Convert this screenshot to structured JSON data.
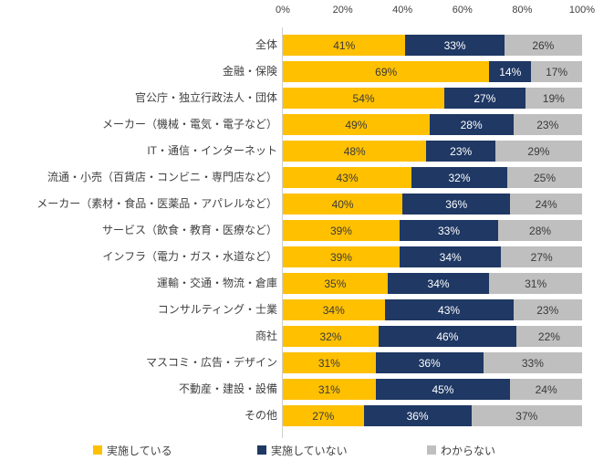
{
  "chart_data": {
    "type": "bar",
    "orientation": "horizontal-stacked",
    "title": "",
    "xlabel": "",
    "ylabel": "",
    "value_suffix": "%",
    "x_axis": {
      "min": 0,
      "max": 100,
      "ticks": [
        "0%",
        "20%",
        "40%",
        "60%",
        "80%",
        "100%"
      ],
      "tick_values": [
        0,
        20,
        40,
        60,
        80,
        100
      ]
    },
    "grid": false,
    "legend_position": "bottom",
    "categories": [
      "全体",
      "金融・保険",
      "官公庁・独立行政法人・団体",
      "メーカー（機械・電気・電子など）",
      "IT・通信・インターネット",
      "流通・小売（百貨店・コンビニ・専門店など）",
      "メーカー（素材・食品・医薬品・アパレルなど）",
      "サービス（飲食・教育・医療など）",
      "インフラ（電力・ガス・水道など）",
      "運輸・交通・物流・倉庫",
      "コンサルティング・士業",
      "商社",
      "マスコミ・広告・デザイン",
      "不動産・建設・設備",
      "その他"
    ],
    "series": [
      {
        "name": "実施している",
        "color": "#FFC000",
        "text_color": "#3a3a3a",
        "values": [
          41,
          69,
          54,
          49,
          48,
          43,
          40,
          39,
          39,
          35,
          34,
          32,
          31,
          31,
          27
        ]
      },
      {
        "name": "実施していない",
        "color": "#1F3864",
        "text_color": "#ffffff",
        "values": [
          33,
          14,
          27,
          28,
          23,
          32,
          36,
          33,
          34,
          34,
          43,
          46,
          36,
          45,
          36
        ]
      },
      {
        "name": "わからない",
        "color": "#BFBFBF",
        "text_color": "#3a3a3a",
        "values": [
          26,
          17,
          19,
          23,
          29,
          25,
          24,
          28,
          27,
          31,
          23,
          22,
          33,
          24,
          37
        ]
      }
    ]
  }
}
